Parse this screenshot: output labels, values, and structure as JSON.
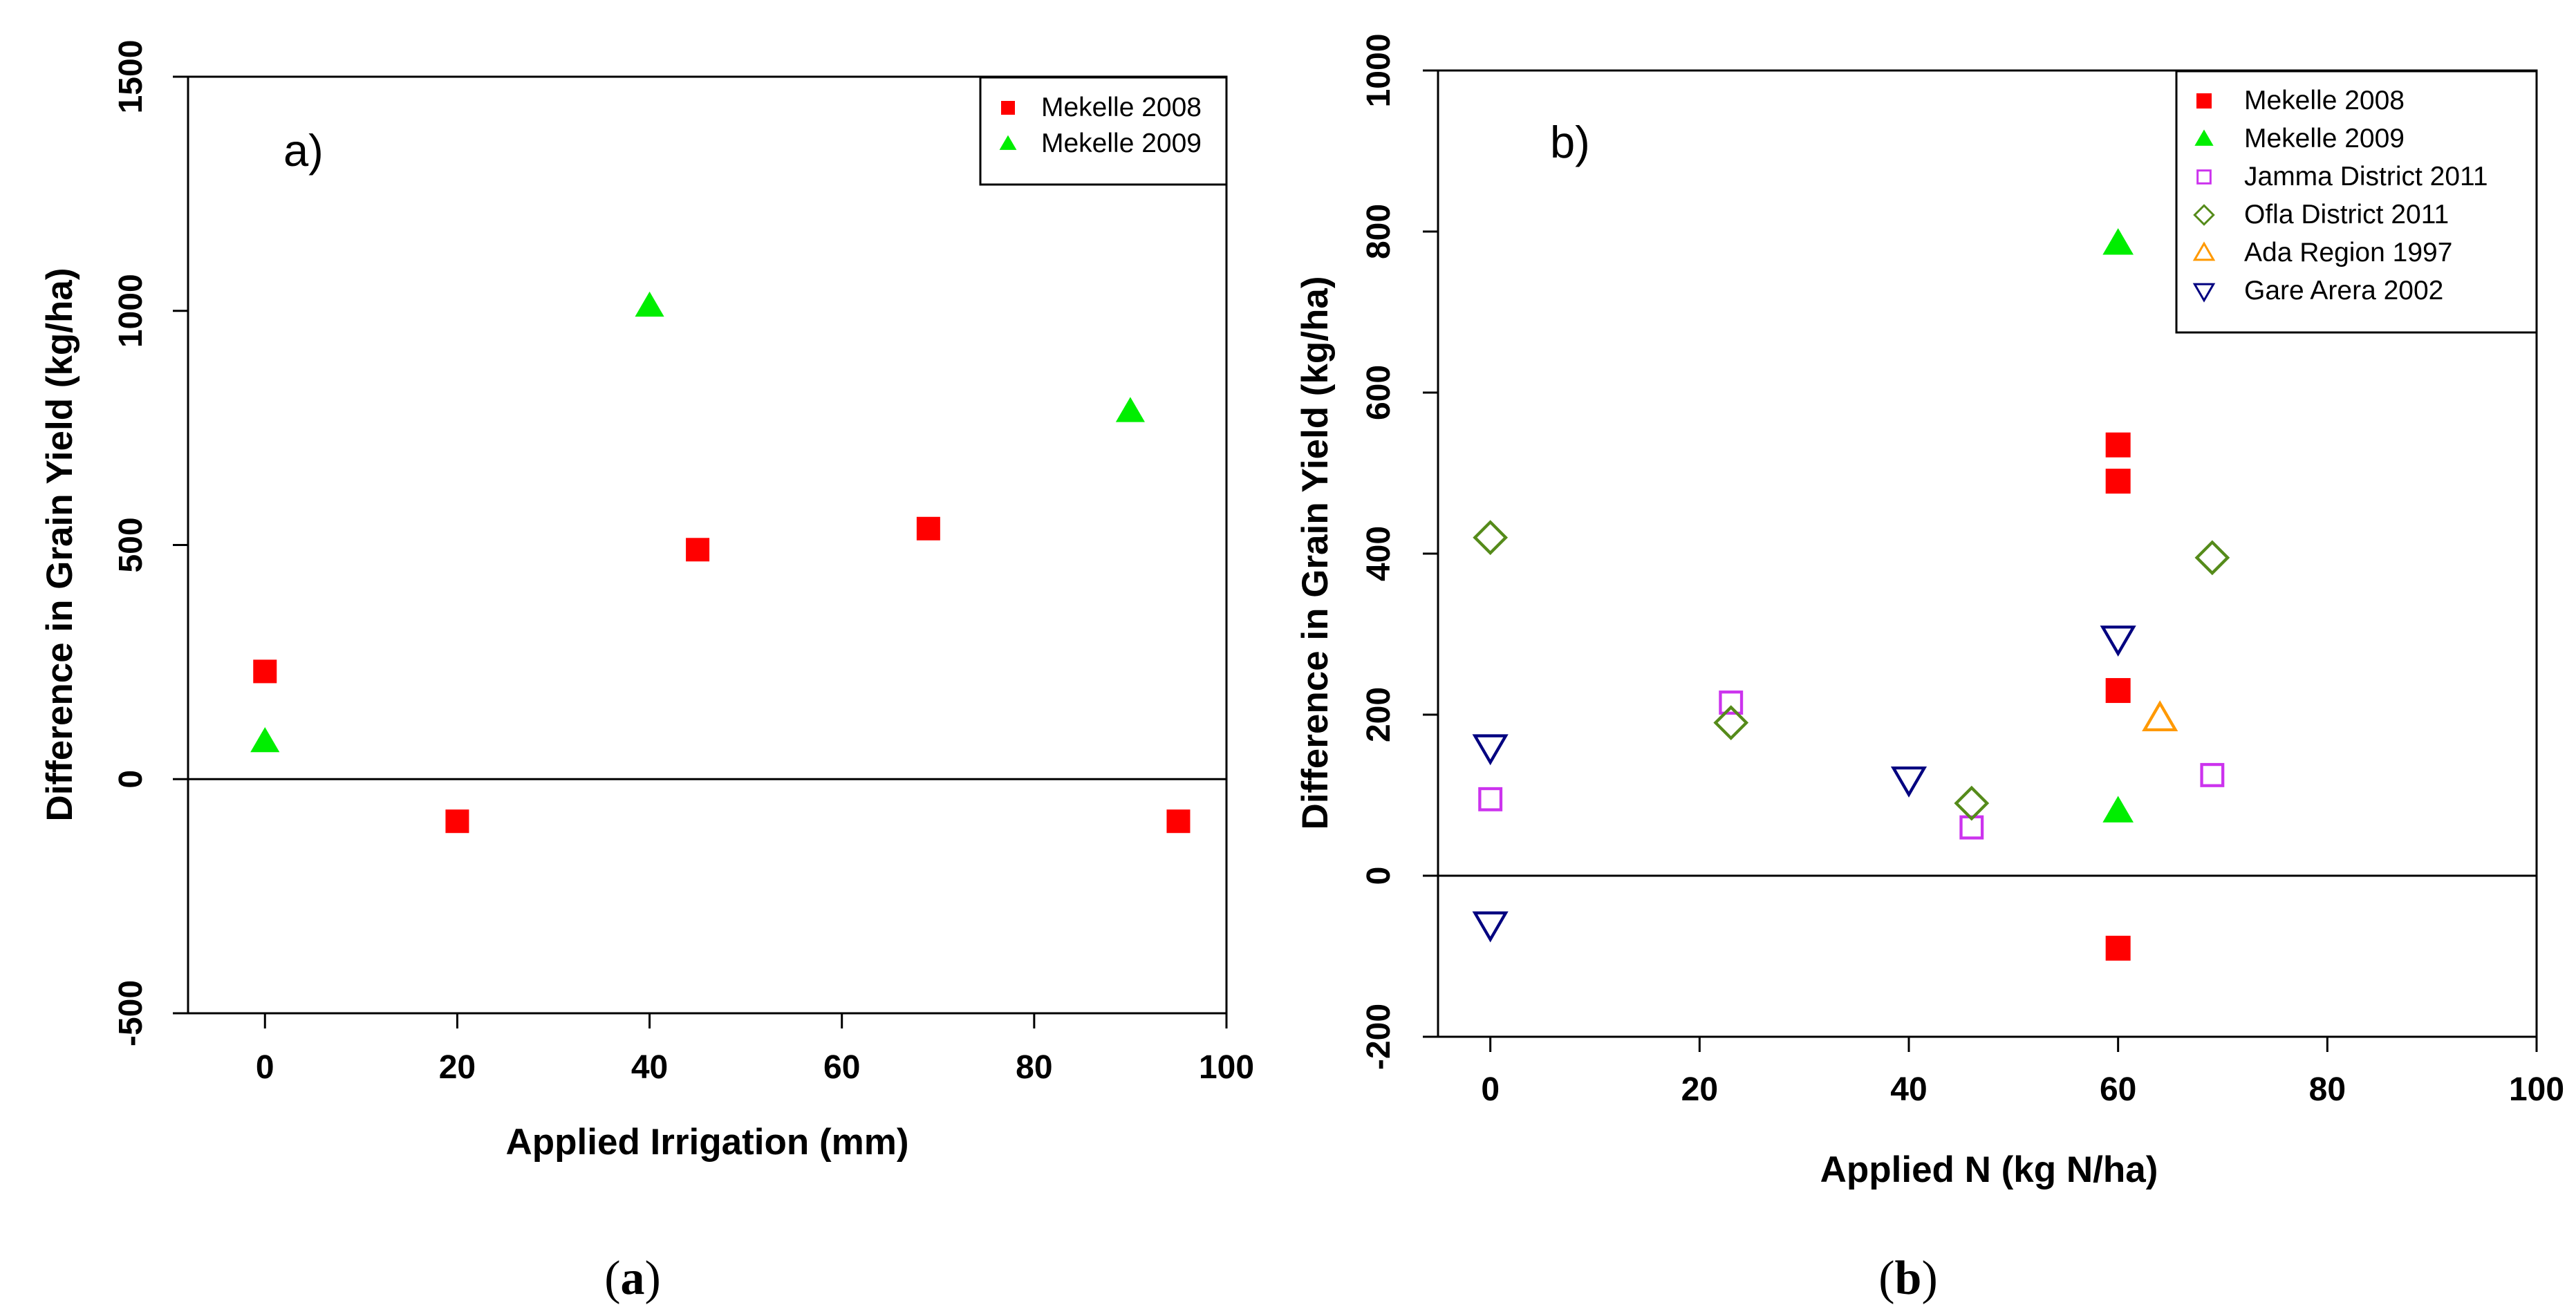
{
  "chart_data": [
    {
      "type": "scatter",
      "panel_label": "a)",
      "caption": {
        "open": "(",
        "letter": "a",
        "close": ")"
      },
      "xlabel": "Applied Irrigation  (mm)",
      "ylabel": "Difference in Grain Yield (kg/ha)",
      "xlim": [
        -8,
        100
      ],
      "ylim": [
        -500,
        1500
      ],
      "xticks": [
        0,
        20,
        40,
        60,
        80,
        100
      ],
      "yticks": [
        -500,
        0,
        500,
        1000,
        1500
      ],
      "reference_line_y": 0,
      "legend_position": "top-right",
      "series": [
        {
          "name": "Mekelle 2008",
          "marker": "square-filled",
          "color": "#ff0000",
          "x": [
            0,
            20,
            45,
            69,
            95
          ],
          "y": [
            230,
            -90,
            490,
            535,
            -90
          ]
        },
        {
          "name": "Mekelle 2009",
          "marker": "triangle-filled",
          "color": "#00ee00",
          "x": [
            0,
            40,
            90
          ],
          "y": [
            80,
            1010,
            785
          ]
        }
      ]
    },
    {
      "type": "scatter",
      "panel_label": "b)",
      "caption": {
        "open": "(",
        "letter": "b",
        "close": ")"
      },
      "xlabel": "Applied N (kg N/ha)",
      "ylabel": "Difference in Grain Yield (kg/ha)",
      "xlim": [
        -5,
        100
      ],
      "ylim": [
        -200,
        1000
      ],
      "xticks": [
        0,
        20,
        40,
        60,
        80,
        100
      ],
      "yticks": [
        -200,
        0,
        200,
        400,
        600,
        800,
        1000
      ],
      "reference_line_y": 0,
      "legend_position": "top-right",
      "series": [
        {
          "name": "Mekelle 2008",
          "marker": "square-filled",
          "color": "#ff0000",
          "x": [
            60,
            60,
            60,
            60
          ],
          "y": [
            535,
            490,
            230,
            -90
          ]
        },
        {
          "name": "Mekelle 2009",
          "marker": "triangle-filled",
          "color": "#00ee00",
          "x": [
            60,
            60
          ],
          "y": [
            785,
            80
          ]
        },
        {
          "name": "Jamma District 2011",
          "marker": "square-open",
          "color": "#cc33ee",
          "x": [
            0,
            23,
            46,
            69
          ],
          "y": [
            95,
            215,
            60,
            125
          ]
        },
        {
          "name": "Ofla District 2011",
          "marker": "diamond-open",
          "color": "#558b1a",
          "x": [
            0,
            23,
            46,
            69
          ],
          "y": [
            420,
            190,
            90,
            395
          ]
        },
        {
          "name": "Ada Region 1997",
          "marker": "triangle-open",
          "color": "#ff9900",
          "x": [
            64
          ],
          "y": [
            195
          ]
        },
        {
          "name": "Gare Arera 2002",
          "marker": "triangle-down-open",
          "color": "#000080",
          "x": [
            0,
            0,
            40,
            60
          ],
          "y": [
            160,
            -60,
            120,
            295
          ]
        }
      ]
    }
  ]
}
